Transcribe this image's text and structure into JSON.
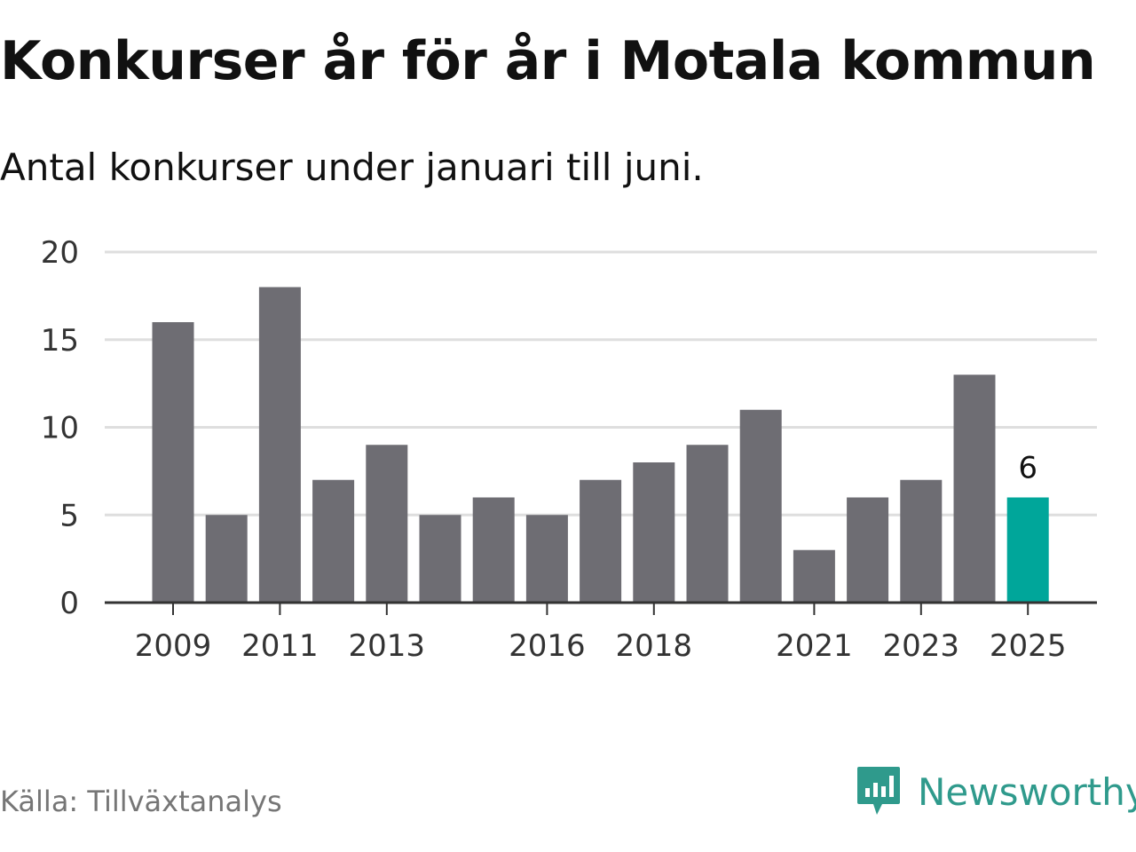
{
  "title": "Konkurser år för år i Motala kommun",
  "subtitle": "Antal konkurser under januari till juni.",
  "source": "Källa: Tillväxtanalys",
  "brand": {
    "name": "Newsworthy",
    "icon": "newsworthy-logo-icon"
  },
  "colors": {
    "bar": "#6e6d73",
    "highlight": "#00a69a",
    "grid": "#dedede",
    "axis": "#333333",
    "brand": "#2f9a8c"
  },
  "chart_data": {
    "type": "bar",
    "title": "Konkurser år för år i Motala kommun",
    "subtitle": "Antal konkurser under januari till juni.",
    "xlabel": "",
    "ylabel": "",
    "ylim": [
      0,
      20
    ],
    "yticks": [
      0,
      5,
      10,
      15,
      20
    ],
    "grid": true,
    "categories": [
      "2009",
      "2010",
      "2011",
      "2012",
      "2013",
      "2014",
      "2015",
      "2016",
      "2017",
      "2018",
      "2019",
      "2020",
      "2021",
      "2022",
      "2023",
      "2024",
      "2025"
    ],
    "values": [
      16,
      5,
      18,
      7,
      9,
      5,
      6,
      5,
      7,
      8,
      9,
      11,
      3,
      6,
      7,
      13,
      6
    ],
    "xtick_labels": [
      "2009",
      "2011",
      "2013",
      "2016",
      "2018",
      "2021",
      "2023",
      "2025"
    ],
    "highlight_category": "2025",
    "data_labels": [
      {
        "category": "2025",
        "text": "6"
      }
    ]
  }
}
